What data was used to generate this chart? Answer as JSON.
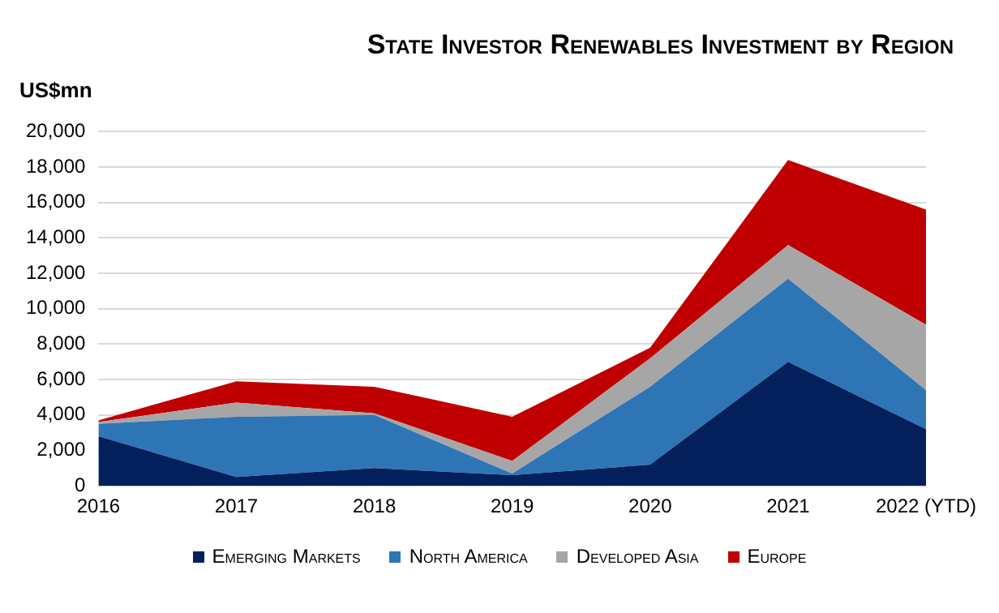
{
  "chart_data": {
    "type": "area",
    "title": "State Investor Renewables Investment by Region",
    "ylabel": "US$mn",
    "categories": [
      "2016",
      "2017",
      "2018",
      "2019",
      "2020",
      "2021",
      "2022 (YTD)"
    ],
    "series": [
      {
        "name": "Emerging Markets",
        "color": "#04205c",
        "values": [
          2800,
          500,
          1000,
          600,
          1200,
          7000,
          3200
        ]
      },
      {
        "name": "North America",
        "color": "#2e75b6",
        "values": [
          700,
          3400,
          3000,
          100,
          4400,
          4700,
          2200
        ]
      },
      {
        "name": "Developed Asia",
        "color": "#a6a6a6",
        "values": [
          100,
          800,
          100,
          700,
          1600,
          1900,
          3700
        ]
      },
      {
        "name": "Europe",
        "color": "#c00000",
        "values": [
          100,
          1200,
          1500,
          2500,
          600,
          4800,
          6500
        ]
      }
    ],
    "stacked": true,
    "ylim": [
      0,
      20000
    ],
    "yticks": [
      0,
      {
        "value": 2000,
        "label": "2,000"
      },
      {
        "value": 4000,
        "label": "4,000"
      },
      {
        "value": 6000,
        "label": "6,000"
      },
      {
        "value": 8000,
        "label": "8,000"
      },
      {
        "value": 10000,
        "label": "10,000"
      },
      {
        "value": 12000,
        "label": "12,000"
      },
      {
        "value": 14000,
        "label": "14,000"
      },
      {
        "value": 16000,
        "label": "16,000"
      },
      {
        "value": 18000,
        "label": "18,000"
      },
      {
        "value": 20000,
        "label": "20,000"
      }
    ],
    "grid": "y",
    "legend": "bottom"
  }
}
